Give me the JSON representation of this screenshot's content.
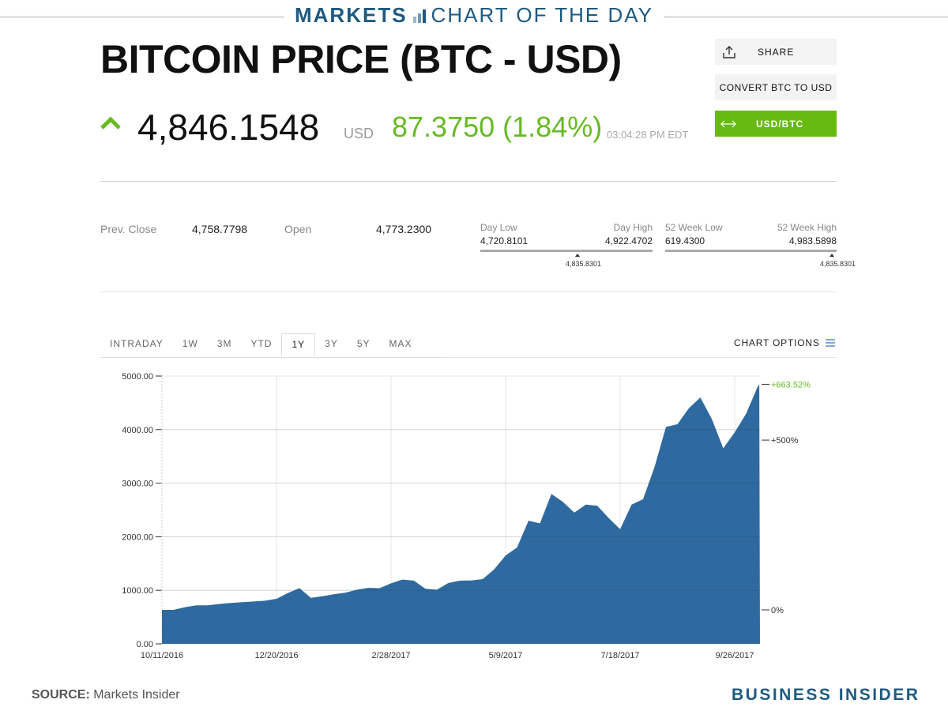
{
  "banner": {
    "markets": "MARKETS",
    "chart_of_day": "CHART OF THE DAY"
  },
  "title": "BITCOIN PRICE (BTC - USD)",
  "quote": {
    "price": "4,846.1548",
    "currency": "USD",
    "change": "87.3750 (1.84%)",
    "time": "03:04:28 PM EDT",
    "direction": "up"
  },
  "buttons": {
    "share": "SHARE",
    "convert": "CONVERT BTC TO USD",
    "toggle": "USD/BTC"
  },
  "colors": {
    "accent": "#66bb22",
    "brand": "#1e5a80",
    "area": "#2e6a9f"
  },
  "stats": {
    "prev_close_label": "Prev. Close",
    "prev_close": "4,758.7798",
    "open_label": "Open",
    "open": "4,773.2300",
    "day_low_label": "Day Low",
    "day_low": "4,720.8101",
    "day_high_label": "Day High",
    "day_high": "4,922.4702",
    "day_marker": "4,835.8301",
    "wk_low_label": "52 Week Low",
    "wk_low": "619.4300",
    "wk_high_label": "52 Week High",
    "wk_high": "4,983.5898",
    "wk_marker": "4,835.8301"
  },
  "tabs": [
    {
      "label": "INTRADAY"
    },
    {
      "label": "1W"
    },
    {
      "label": "3M"
    },
    {
      "label": "YTD"
    },
    {
      "label": "1Y",
      "active": true
    },
    {
      "label": "3Y"
    },
    {
      "label": "5Y"
    },
    {
      "label": "MAX"
    }
  ],
  "chart_options": "CHART OPTIONS",
  "chart_data": {
    "type": "area",
    "ylim": [
      0,
      5000
    ],
    "yticks": [
      "0.00",
      "1000.00",
      "2000.00",
      "3000.00",
      "4000.00",
      "5000.00"
    ],
    "xticks": [
      "10/11/2016",
      "12/20/2016",
      "2/28/2017",
      "5/9/2017",
      "7/18/2017",
      "9/26/2017"
    ],
    "right_ticks": [
      {
        "label": "0%",
        "value": 634
      },
      {
        "label": "+500%",
        "value": 3804
      },
      {
        "label": "+663.52%",
        "value": 4846,
        "highlight": true
      }
    ],
    "grid": true,
    "x": [
      "2016-10-11",
      "2016-10-18",
      "2016-10-25",
      "2016-11-01",
      "2016-11-08",
      "2016-11-15",
      "2016-11-22",
      "2016-11-29",
      "2016-12-06",
      "2016-12-13",
      "2016-12-20",
      "2016-12-27",
      "2017-01-03",
      "2017-01-10",
      "2017-01-17",
      "2017-01-24",
      "2017-01-31",
      "2017-02-07",
      "2017-02-14",
      "2017-02-21",
      "2017-02-28",
      "2017-03-07",
      "2017-03-14",
      "2017-03-21",
      "2017-03-28",
      "2017-04-04",
      "2017-04-11",
      "2017-04-18",
      "2017-04-25",
      "2017-05-02",
      "2017-05-09",
      "2017-05-16",
      "2017-05-23",
      "2017-05-30",
      "2017-06-06",
      "2017-06-13",
      "2017-06-20",
      "2017-06-27",
      "2017-07-04",
      "2017-07-11",
      "2017-07-18",
      "2017-07-25",
      "2017-08-01",
      "2017-08-08",
      "2017-08-15",
      "2017-08-22",
      "2017-08-29",
      "2017-09-05",
      "2017-09-12",
      "2017-09-19",
      "2017-09-26",
      "2017-10-03",
      "2017-10-10",
      "2017-10-11"
    ],
    "values": [
      634,
      634,
      685,
      718,
      720,
      745,
      762,
      777,
      790,
      805,
      840,
      950,
      1040,
      860,
      890,
      925,
      955,
      1010,
      1045,
      1040,
      1130,
      1200,
      1180,
      1030,
      1010,
      1135,
      1180,
      1185,
      1210,
      1390,
      1650,
      1800,
      2300,
      2250,
      2800,
      2650,
      2450,
      2600,
      2580,
      2350,
      2140,
      2600,
      2700,
      3300,
      4050,
      4100,
      4400,
      4600,
      4200,
      3650,
      3950,
      4300,
      4800,
      4846
    ]
  },
  "footer": {
    "source_label": "SOURCE:",
    "source": " Markets Insider",
    "brand": "BUSINESS INSIDER"
  }
}
